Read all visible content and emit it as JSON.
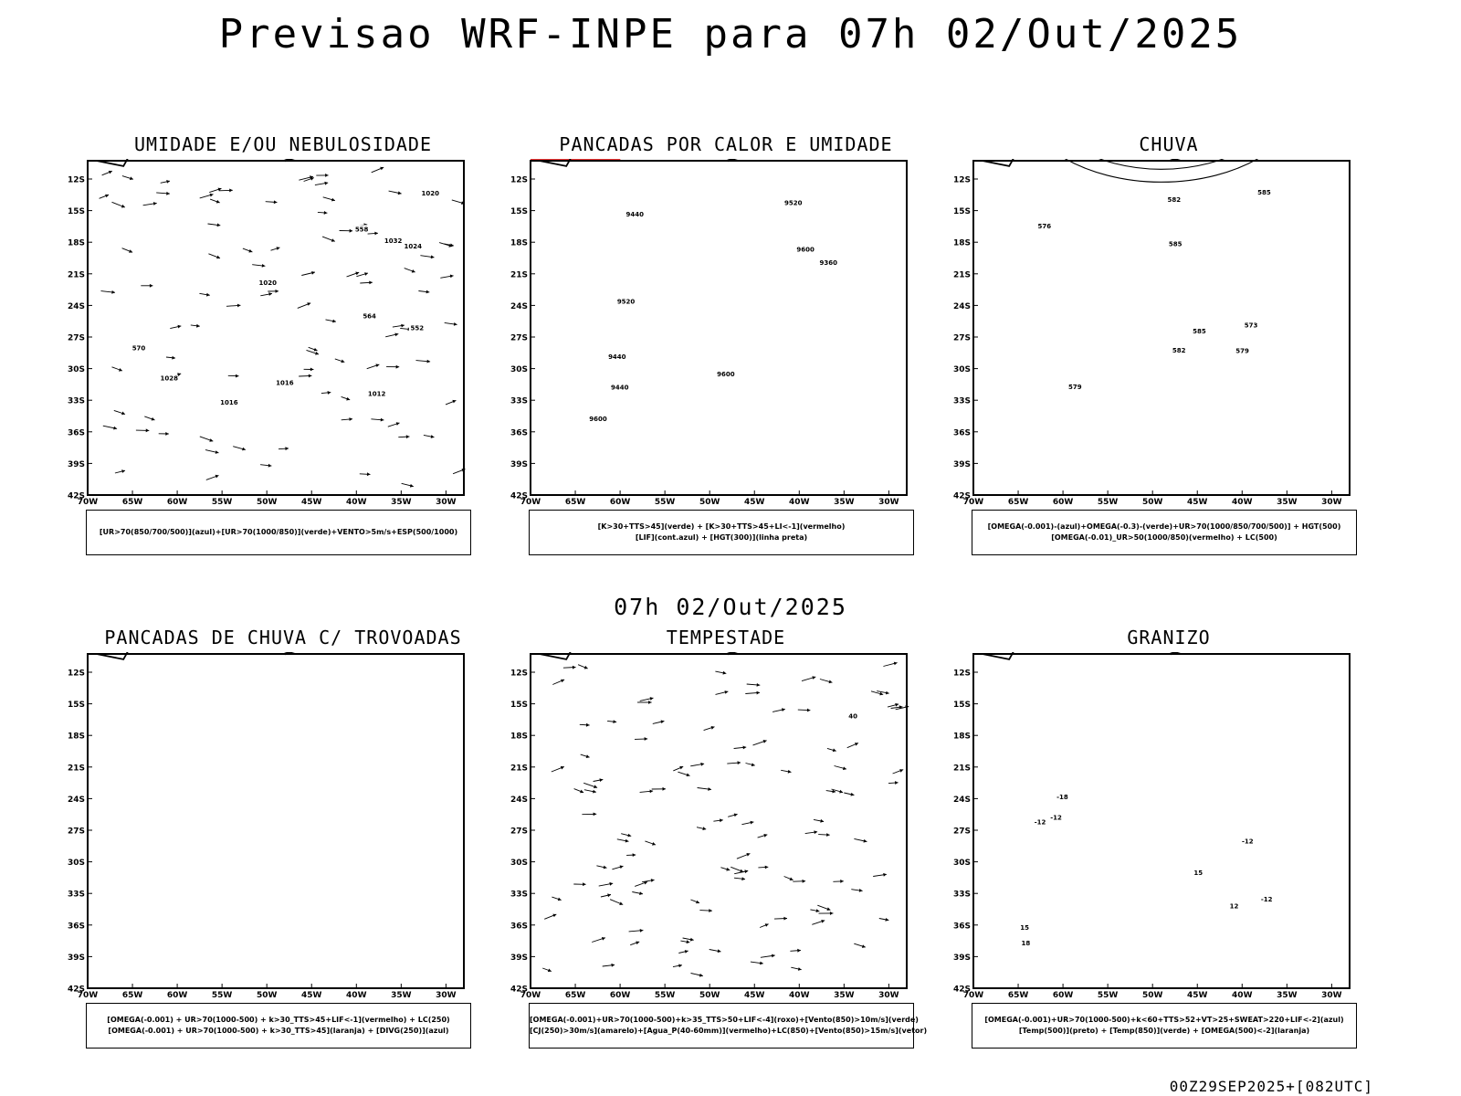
{
  "title": "Previsao WRF-INPE  para 07h 02/Out/2025",
  "mid_title": "07h 02/Out/2025",
  "footer": "00Z29SEP2025+[082UTC]",
  "axes": {
    "lat_labels": [
      "12S",
      "15S",
      "18S",
      "21S",
      "24S",
      "27S",
      "30S",
      "33S",
      "36S",
      "39S",
      "42S"
    ],
    "lon_labels": [
      "70W",
      "65W",
      "60W",
      "55W",
      "50W",
      "45W",
      "40W",
      "35W",
      "30W"
    ]
  },
  "panels": [
    {
      "title": "UMIDADE E/OU NEBULOSIDADE",
      "legend": [
        "[UR>70(850/700/500)](azul)+[UR>70(1000/850)](verde)+VENTO>5m/s+ESP(500/1000)"
      ],
      "contour_labels": [
        "1012",
        "1016",
        "1020",
        "1024",
        "1028",
        "1032",
        "1020",
        "1016",
        "570",
        "564",
        "558",
        "552"
      ]
    },
    {
      "title": "PANCADAS POR CALOR E UMIDADE",
      "legend": [
        "[K>30+TTS>45](verde) + [K>30+TTS>45+LI<-1](vermelho)",
        "[LIF](cont.azul) + [HGT(300)](linha preta)"
      ],
      "contour_labels": [
        "9600",
        "9520",
        "9440",
        "9600",
        "9600",
        "9520",
        "9440",
        "9440",
        "9360"
      ]
    },
    {
      "title": "CHUVA",
      "legend": [
        "[OMEGA(-0.001)-(azul)+OMEGA(-0.3)-(verde)+UR>70(1000/850/700/500)] + HGT(500)",
        "[OMEGA(-0.01)_UR>50(1000/850)(vermelho) + LC(500)"
      ],
      "contour_labels": [
        "585",
        "585",
        "582",
        "579",
        "576",
        "573",
        "585",
        "582",
        "579"
      ]
    },
    {
      "title": "PANCADAS DE CHUVA C/ TROVOADAS",
      "legend": [
        "[OMEGA(-0.001) + UR>70(1000-500) + k>30_TTS>45+LIF<-1](vermelho) + LC(250)",
        "[OMEGA(-0.001) + UR>70(1000-500) + k>30_TTS>45](laranja) + [DIVG(250)](azul)"
      ],
      "contour_labels": []
    },
    {
      "title": "TEMPESTADE",
      "legend": [
        "[OMEGA(-0.001)+UR>70(1000-500)+k>35_TTS>50+LIF<-4](roxo)+[Vento(850)>10m/s](verde)",
        "[CJ(250)>30m/s](amarelo)+[Agua_P(40-60mm)](vermelho)+LC(850)+[Vento(850)>15m/s](vetor)"
      ],
      "contour_labels": [
        "40"
      ]
    },
    {
      "title": "GRANIZO",
      "legend": [
        "[OMEGA(-0.001)+UR>70(1000-500)+k<60+TTS>52+VT>25+SWEAT>220+LIF<-2](azul)",
        "[Temp(500)](preto) + [Temp(850)](verde) + [OMEGA(500)<-2](laranja)"
      ],
      "contour_labels": [
        "-12",
        "-12",
        "15",
        "-12",
        "15",
        "-18",
        "-12",
        "12",
        "18"
      ]
    }
  ],
  "colors": {
    "blue": "#3355ee",
    "lavender": "#b8b4f0",
    "green": "#22cc22",
    "red": "#ee3333",
    "darkteal": "#2e5050",
    "orange": "#f08020",
    "yellow": "#e4d33a",
    "purple": "#9922aa"
  }
}
